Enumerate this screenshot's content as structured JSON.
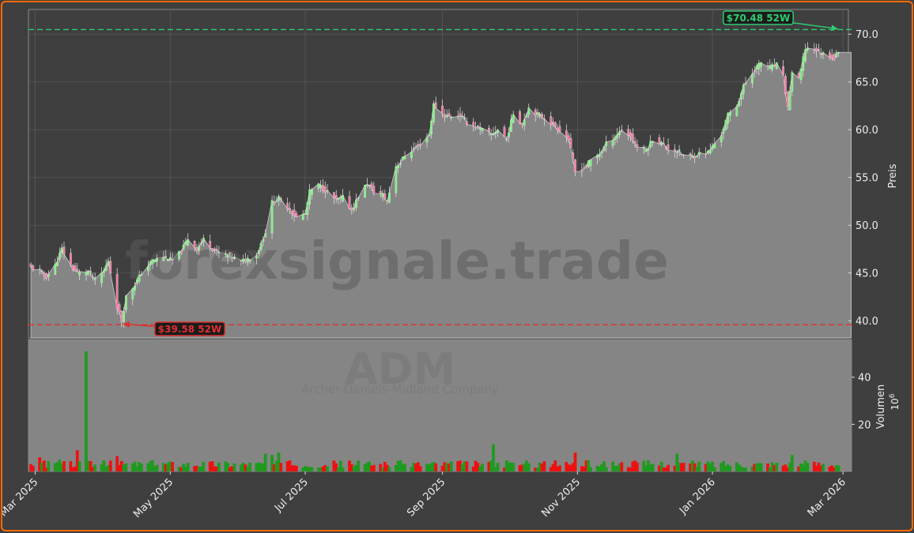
{
  "chart_data": {
    "type": "candlestick",
    "ticker": "ADM",
    "company": "Archer-Daniels-Midland Company",
    "watermark": "forexsignale.trade",
    "ylabel_price": "Preis",
    "ylabel_volume": "Volumen",
    "volume_exponent": "10",
    "volume_exponent_power": "6",
    "x_tick_labels": [
      "Mar 2025",
      "May 2025",
      "Jul 2025",
      "Sep 2025",
      "Nov 2025",
      "Jan 2026",
      "Mar 2026"
    ],
    "x_tick_dates": [
      "2025-03-01",
      "2025-05-01",
      "2025-07-01",
      "2025-09-01",
      "2025-11-01",
      "2026-01-01",
      "2026-03-01"
    ],
    "x_range": [
      "2025-02-27",
      "2026-03-02"
    ],
    "price_ylim": [
      38.2,
      72.5
    ],
    "price_ticks": [
      "40.0",
      "45.0",
      "50.0",
      "55.0",
      "60.0",
      "65.0",
      "70.0"
    ],
    "volume_ylim": [
      0,
      56
    ],
    "volume_ticks": [
      "20",
      "40"
    ],
    "high_52w": {
      "label": "$70.48 52W",
      "value": 70.48,
      "date": "2026-02-27",
      "color": "#2ecc71"
    },
    "low_52w": {
      "label": "$39.58 52W",
      "value": 39.58,
      "date": "2025-04-09",
      "color": "#e03030"
    },
    "price_anchors": [
      [
        "2025-02-27",
        45.6
      ],
      [
        "2025-03-03",
        45.2
      ],
      [
        "2025-03-06",
        44.6
      ],
      [
        "2025-03-10",
        45.8
      ],
      [
        "2025-03-13",
        47.5
      ],
      [
        "2025-03-17",
        45.8
      ],
      [
        "2025-03-20",
        45.0
      ],
      [
        "2025-03-25",
        45.2
      ],
      [
        "2025-03-28",
        44.2
      ],
      [
        "2025-04-01",
        45.2
      ],
      [
        "2025-04-03",
        46.3
      ],
      [
        "2025-04-07",
        41.5
      ],
      [
        "2025-04-09",
        40.0
      ],
      [
        "2025-04-11",
        42.5
      ],
      [
        "2025-04-15",
        43.8
      ],
      [
        "2025-04-18",
        45.0
      ],
      [
        "2025-04-23",
        46.3
      ],
      [
        "2025-04-28",
        46.7
      ],
      [
        "2025-05-02",
        46.3
      ],
      [
        "2025-05-06",
        47.3
      ],
      [
        "2025-05-09",
        48.6
      ],
      [
        "2025-05-13",
        47.5
      ],
      [
        "2025-05-16",
        48.5
      ],
      [
        "2025-05-20",
        47.6
      ],
      [
        "2025-05-23",
        47.1
      ],
      [
        "2025-05-28",
        46.8
      ],
      [
        "2025-06-02",
        46.2
      ],
      [
        "2025-06-05",
        46.5
      ],
      [
        "2025-06-09",
        46.9
      ],
      [
        "2025-06-13",
        49.3
      ],
      [
        "2025-06-16",
        52.4
      ],
      [
        "2025-06-19",
        52.8
      ],
      [
        "2025-06-24",
        51.7
      ],
      [
        "2025-06-27",
        50.8
      ],
      [
        "2025-07-01",
        51.2
      ],
      [
        "2025-07-03",
        53.5
      ],
      [
        "2025-07-07",
        54.2
      ],
      [
        "2025-07-10",
        53.7
      ],
      [
        "2025-07-15",
        52.6
      ],
      [
        "2025-07-18",
        52.9
      ],
      [
        "2025-07-22",
        51.6
      ],
      [
        "2025-07-25",
        53.0
      ],
      [
        "2025-07-29",
        54.4
      ],
      [
        "2025-08-01",
        53.5
      ],
      [
        "2025-08-05",
        53.2
      ],
      [
        "2025-08-07",
        52.5
      ],
      [
        "2025-08-11",
        56.2
      ],
      [
        "2025-08-13",
        56.6
      ],
      [
        "2025-08-15",
        57.3
      ],
      [
        "2025-08-19",
        58.0
      ],
      [
        "2025-08-22",
        58.5
      ],
      [
        "2025-08-26",
        59.5
      ],
      [
        "2025-08-28",
        62.6
      ],
      [
        "2025-09-02",
        61.5
      ],
      [
        "2025-09-05",
        61.4
      ],
      [
        "2025-09-09",
        61.5
      ],
      [
        "2025-09-12",
        60.8
      ],
      [
        "2025-09-16",
        60.3
      ],
      [
        "2025-09-19",
        60.0
      ],
      [
        "2025-09-23",
        59.5
      ],
      [
        "2025-09-26",
        60.0
      ],
      [
        "2025-09-30",
        59.0
      ],
      [
        "2025-10-03",
        61.7
      ],
      [
        "2025-10-07",
        60.6
      ],
      [
        "2025-10-10",
        62.3
      ],
      [
        "2025-10-14",
        61.6
      ],
      [
        "2025-10-17",
        61.3
      ],
      [
        "2025-10-21",
        60.5
      ],
      [
        "2025-10-24",
        60.0
      ],
      [
        "2025-10-28",
        59.0
      ],
      [
        "2025-10-31",
        55.6
      ],
      [
        "2025-11-04",
        56.0
      ],
      [
        "2025-11-07",
        56.8
      ],
      [
        "2025-11-11",
        57.5
      ],
      [
        "2025-11-14",
        58.5
      ],
      [
        "2025-11-18",
        59.3
      ],
      [
        "2025-11-21",
        60.0
      ],
      [
        "2025-11-25",
        59.3
      ],
      [
        "2025-11-28",
        58.2
      ],
      [
        "2025-12-02",
        57.9
      ],
      [
        "2025-12-05",
        59.0
      ],
      [
        "2025-12-09",
        58.6
      ],
      [
        "2025-12-12",
        58.0
      ],
      [
        "2025-12-16",
        57.8
      ],
      [
        "2025-12-19",
        57.3
      ],
      [
        "2025-12-23",
        57.2
      ],
      [
        "2025-12-26",
        57.5
      ],
      [
        "2025-12-30",
        57.6
      ],
      [
        "2026-01-05",
        59.5
      ],
      [
        "2026-01-08",
        61.5
      ],
      [
        "2026-01-12",
        62.5
      ],
      [
        "2026-01-15",
        64.5
      ],
      [
        "2026-01-20",
        66.3
      ],
      [
        "2026-01-23",
        67.0
      ],
      [
        "2026-01-27",
        66.5
      ],
      [
        "2026-01-30",
        66.8
      ],
      [
        "2026-02-02",
        65.5
      ],
      [
        "2026-02-04",
        62.3
      ],
      [
        "2026-02-06",
        66.0
      ],
      [
        "2026-02-09",
        65.2
      ],
      [
        "2026-02-12",
        68.5
      ],
      [
        "2026-02-16",
        68.5
      ],
      [
        "2026-02-19",
        68.0
      ],
      [
        "2026-02-23",
        67.8
      ],
      [
        "2026-02-25",
        67.4
      ],
      [
        "2026-02-27",
        68.3
      ]
    ],
    "volume_millions_base": 3.5,
    "volume_spikes": [
      [
        "2025-03-03",
        6.0
      ],
      [
        "2025-03-12",
        5.0
      ],
      [
        "2025-03-20",
        9.0
      ],
      [
        "2025-03-24",
        51.0
      ],
      [
        "2025-04-07",
        6.5
      ],
      [
        "2025-06-13",
        7.5
      ],
      [
        "2025-06-16",
        7.0
      ],
      [
        "2025-06-19",
        8.0
      ],
      [
        "2025-09-24",
        11.5
      ],
      [
        "2025-10-31",
        8.0
      ],
      [
        "2025-12-16",
        7.5
      ],
      [
        "2026-02-06",
        7.0
      ]
    ]
  }
}
